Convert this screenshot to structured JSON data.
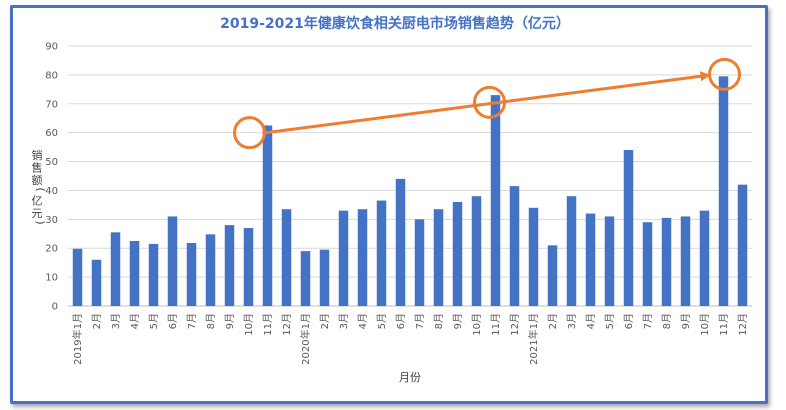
{
  "chart_data": {
    "type": "bar",
    "title": "2019-2021年健康饮食相关厨电市场销售趋势（亿元）",
    "xlabel": "月份",
    "ylabel": "销售额(亿元)",
    "ylim": [
      0,
      90
    ],
    "yticks": [
      0,
      10,
      20,
      30,
      40,
      50,
      60,
      70,
      80,
      90
    ],
    "grid": true,
    "categories": [
      "2019年1月",
      "2月",
      "3月",
      "4月",
      "5月",
      "6月",
      "7月",
      "8月",
      "9月",
      "10月",
      "11月",
      "12月",
      "2020年1月",
      "2月",
      "3月",
      "4月",
      "5月",
      "6月",
      "7月",
      "8月",
      "9月",
      "10月",
      "11月",
      "12月",
      "2021年1月",
      "2月",
      "3月",
      "4月",
      "5月",
      "6月",
      "7月",
      "8月",
      "9月",
      "10月",
      "11月",
      "12月"
    ],
    "values": [
      19.8,
      16,
      25.5,
      22.5,
      21.5,
      31,
      21.8,
      24.8,
      28,
      27,
      62.5,
      33.5,
      19,
      19.5,
      33,
      33.5,
      36.5,
      44,
      30,
      33.5,
      36,
      38,
      73,
      41.5,
      34,
      21,
      38,
      32,
      31,
      54,
      29,
      30.5,
      31,
      33,
      79.5,
      42
    ],
    "bar_color": "#4472C4",
    "annotations": {
      "highlight_color": "#ED7D31",
      "highlighted_indices": [
        10,
        22,
        34
      ],
      "trend_arrow": "from 2019年11月 through 2020年11月 to 2021年11月"
    }
  }
}
